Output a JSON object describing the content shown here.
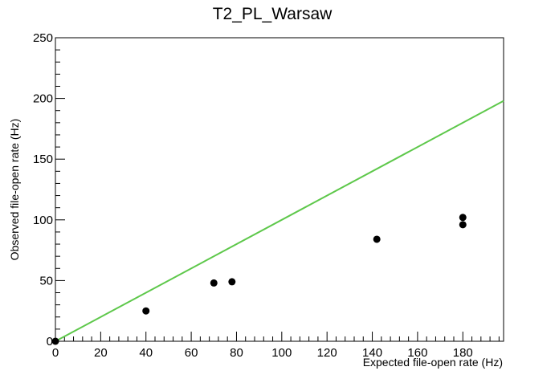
{
  "chart_data": {
    "type": "scatter",
    "title": "T2_PL_Warsaw",
    "xlabel": "Expected file-open rate (Hz)",
    "ylabel": "Observed file-open rate (Hz)",
    "xlim": [
      0,
      198
    ],
    "ylim": [
      0,
      250
    ],
    "x_ticks": [
      0,
      20,
      40,
      60,
      80,
      100,
      120,
      140,
      160,
      180
    ],
    "y_ticks": [
      0,
      50,
      100,
      150,
      200,
      250
    ],
    "grid": false,
    "points": {
      "x": [
        0,
        40,
        70,
        78,
        142,
        180,
        180
      ],
      "y": [
        0,
        25,
        48,
        49,
        84,
        102,
        96
      ],
      "color": "#000000"
    },
    "reference_line": {
      "x": [
        0,
        198
      ],
      "y": [
        0,
        198
      ],
      "color": "#5ec84b"
    }
  }
}
